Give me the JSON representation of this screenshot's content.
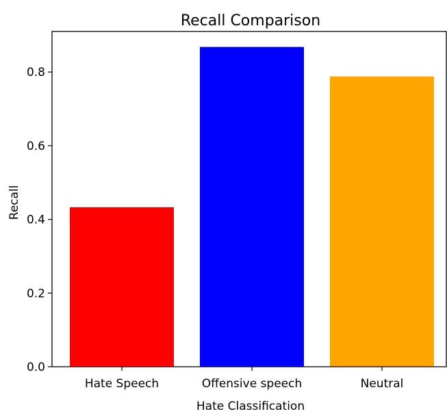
{
  "chart_data": {
    "type": "bar",
    "title": "Recall Comparison",
    "xlabel": "Hate Classification",
    "ylabel": "Recall",
    "categories": [
      "Hate Speech",
      "Offensive speech",
      "Neutral"
    ],
    "values": [
      0.433,
      0.868,
      0.788
    ],
    "colors": [
      "#ff0000",
      "#0000ff",
      "#ffa500"
    ],
    "ylim": [
      0,
      0.91
    ],
    "yticks": [
      0.0,
      0.2,
      0.4,
      0.6,
      0.8
    ],
    "ytick_labels": [
      "0.0",
      "0.2",
      "0.4",
      "0.6",
      "0.8"
    ],
    "grid": false,
    "legend": "none"
  }
}
